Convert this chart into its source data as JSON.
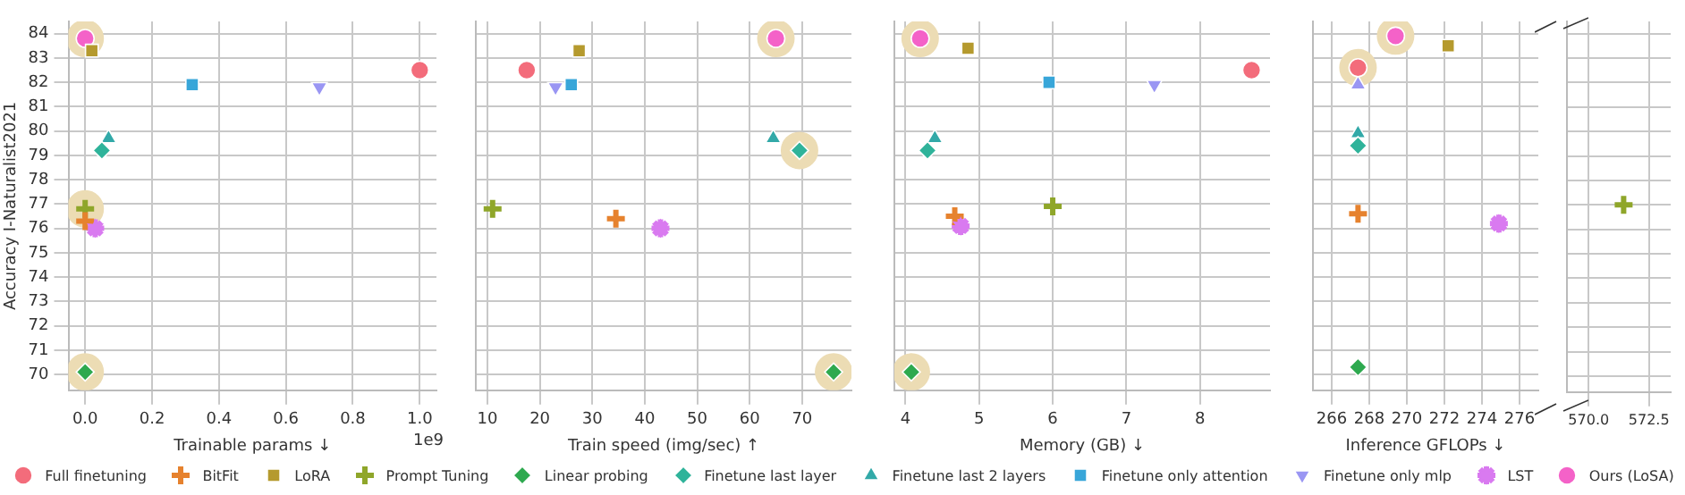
{
  "chart_data": [
    {
      "type": "scatter",
      "xlabel": "Trainable params ↓",
      "ylabel": "Accuracy I-Naturalist2021",
      "annotations": [
        "1e9"
      ],
      "legend": "bottom",
      "grid": true,
      "xlim": [
        -0.05,
        1.05
      ],
      "xticks": [
        {
          "value": 0,
          "label": "0.0"
        },
        {
          "value": 0.2,
          "label": "0.2"
        },
        {
          "value": 0.4,
          "label": "0.4"
        },
        {
          "value": 0.6,
          "label": "0.6"
        },
        {
          "value": 0.8,
          "label": "0.8"
        },
        {
          "value": 1,
          "label": "1.0"
        }
      ],
      "ylim": [
        69.35,
        84.5
      ],
      "yticks": [
        70,
        71,
        72,
        73,
        74,
        75,
        76,
        77,
        78,
        79,
        80,
        81,
        82,
        83,
        84
      ],
      "series": [
        {
          "type": "bubble",
          "color": "#ecdcb4",
          "x": [
            0,
            0,
            0
          ],
          "values": [
            83.8,
            76.8,
            70.1
          ],
          "sizes": [
            1,
            1,
            1
          ]
        },
        {
          "name": "Full finetuning",
          "color": "#f36c7b",
          "marker": "circle",
          "x": [
            1.0
          ],
          "values": [
            82.5
          ]
        },
        {
          "name": "BitFit",
          "color": "#e6822e",
          "marker": "cross",
          "x": [
            0.0
          ],
          "values": [
            76.3
          ]
        },
        {
          "name": "LoRA",
          "color": "#b59a2e",
          "marker": "square",
          "x": [
            0.02
          ],
          "values": [
            83.3
          ]
        },
        {
          "name": "Prompt Tuning",
          "color": "#8fa62a",
          "marker": "cross",
          "x": [
            0.0
          ],
          "values": [
            76.8
          ]
        },
        {
          "name": "Linear probing",
          "color": "#2ea94f",
          "marker": "diamond",
          "x": [
            0.0
          ],
          "values": [
            70.1
          ]
        },
        {
          "name": "Finetune last layer",
          "color": "#2fb39a",
          "marker": "diamond",
          "x": [
            0.05
          ],
          "values": [
            79.2
          ]
        },
        {
          "name": "Finetune last 2 layers",
          "color": "#32a9a8",
          "marker": "triangle",
          "x": [
            0.07
          ],
          "values": [
            79.7
          ]
        },
        {
          "name": "Finetune only attention",
          "color": "#38a6d9",
          "marker": "square",
          "x": [
            0.32
          ],
          "values": [
            81.9
          ]
        },
        {
          "name": "Finetune only mlp",
          "color": "#9a96f3",
          "marker": "triangle",
          "x": [
            0.7
          ],
          "values": [
            81.8
          ]
        },
        {
          "name": "LST",
          "color": "#d97af0",
          "x": [
            0.03
          ],
          "values": [
            76.0
          ]
        },
        {
          "name": "Ours (LoSA)",
          "color": "#f462c8",
          "marker": "circle",
          "x": [
            0.0
          ],
          "values": [
            83.8
          ]
        }
      ]
    },
    {
      "type": "scatter",
      "xlabel": "Train speed (img/sec) ↑",
      "grid": true,
      "tick_labels": "x",
      "xlim": [
        7.8,
        79.4
      ],
      "xticks": [
        10,
        20,
        30,
        40,
        50,
        60,
        70
      ],
      "ylim": [
        69.35,
        84.5
      ],
      "yticks": [
        70,
        71,
        72,
        73,
        74,
        75,
        76,
        77,
        78,
        79,
        80,
        81,
        82,
        83,
        84
      ],
      "series": [
        {
          "type": "bubble",
          "color": "#ecdcb4",
          "x": [
            65,
            69.5,
            76
          ],
          "values": [
            83.8,
            79.2,
            70.1
          ],
          "sizes": [
            1,
            1,
            1
          ]
        },
        {
          "color": "#f36c7b",
          "marker": "circle",
          "x": [
            17.5
          ],
          "values": [
            82.5
          ]
        },
        {
          "color": "#e6822e",
          "marker": "cross",
          "x": [
            34.5
          ],
          "values": [
            76.4
          ]
        },
        {
          "color": "#b59a2e",
          "marker": "square",
          "x": [
            27.5
          ],
          "values": [
            83.3
          ]
        },
        {
          "color": "#8fa62a",
          "marker": "cross",
          "x": [
            11
          ],
          "values": [
            76.8
          ]
        },
        {
          "color": "#2ea94f",
          "marker": "diamond",
          "x": [
            76
          ],
          "values": [
            70.1
          ]
        },
        {
          "color": "#2fb39a",
          "marker": "diamond",
          "x": [
            69.5
          ],
          "values": [
            79.2
          ]
        },
        {
          "color": "#32a9a8",
          "marker": "triangle",
          "x": [
            64.5
          ],
          "values": [
            79.7
          ]
        },
        {
          "color": "#38a6d9",
          "marker": "square",
          "x": [
            26
          ],
          "values": [
            81.9
          ]
        },
        {
          "color": "#9a96f3",
          "marker": "triangle",
          "x": [
            23
          ],
          "values": [
            81.8
          ]
        },
        {
          "color": "#d97af0",
          "x": [
            43
          ],
          "values": [
            76.0
          ]
        },
        {
          "color": "#f462c8",
          "marker": "circle",
          "x": [
            65
          ],
          "values": [
            83.8
          ]
        }
      ]
    },
    {
      "type": "scatter",
      "xlabel": "Memory (GB) ↓",
      "grid": true,
      "tick_labels": "x",
      "xlim": [
        3.85,
        8.95
      ],
      "xticks": [
        4,
        5,
        6,
        7,
        8
      ],
      "ylim": [
        69.35,
        84.5
      ],
      "yticks": [
        70,
        71,
        72,
        73,
        74,
        75,
        76,
        77,
        78,
        79,
        80,
        81,
        82,
        83,
        84
      ],
      "series": [
        {
          "type": "bubble",
          "color": "#ecdcb4",
          "x": [
            4.2,
            4.08
          ],
          "values": [
            83.8,
            70.1
          ],
          "sizes": [
            1,
            1
          ]
        },
        {
          "color": "#f36c7b",
          "marker": "circle",
          "x": [
            8.7
          ],
          "values": [
            82.5
          ]
        },
        {
          "color": "#e6822e",
          "marker": "cross",
          "x": [
            4.67
          ],
          "values": [
            76.5
          ]
        },
        {
          "color": "#b59a2e",
          "marker": "square",
          "x": [
            4.85
          ],
          "values": [
            83.4
          ]
        },
        {
          "color": "#8fa62a",
          "marker": "cross",
          "x": [
            6.0
          ],
          "values": [
            76.9
          ]
        },
        {
          "color": "#2ea94f",
          "marker": "diamond",
          "x": [
            4.08
          ],
          "values": [
            70.1
          ]
        },
        {
          "color": "#2fb39a",
          "marker": "diamond",
          "x": [
            4.3
          ],
          "values": [
            79.2
          ]
        },
        {
          "color": "#32a9a8",
          "marker": "triangle",
          "x": [
            4.4
          ],
          "values": [
            79.7
          ]
        },
        {
          "color": "#38a6d9",
          "marker": "square",
          "x": [
            5.95
          ],
          "values": [
            82.0
          ]
        },
        {
          "color": "#9a96f3",
          "marker": "triangle",
          "x": [
            7.38
          ],
          "values": [
            81.9
          ]
        },
        {
          "color": "#d97af0",
          "x": [
            4.75
          ],
          "values": [
            76.1
          ]
        },
        {
          "color": "#f462c8",
          "marker": "circle",
          "x": [
            4.2
          ],
          "values": [
            83.8
          ]
        }
      ]
    },
    {
      "type": "scatter",
      "xlabel": "Inference GFLOPs ↓",
      "grid": true,
      "tick_labels": "x",
      "xlim": [
        265,
        277
      ],
      "xticks": [
        266,
        268,
        270,
        272,
        274,
        276
      ],
      "ylim": [
        69.35,
        84.5
      ],
      "yticks": [
        70,
        71,
        72,
        73,
        74,
        75,
        76,
        77,
        78,
        79,
        80,
        81,
        82,
        83,
        84
      ],
      "series": [
        {
          "type": "bubble",
          "color": "#ecdcb4",
          "x": [
            269.4,
            267.4
          ],
          "values": [
            83.9,
            82.6
          ],
          "sizes": [
            1,
            1
          ]
        },
        {
          "color": "#f36c7b",
          "marker": "circle",
          "x": [
            267.4
          ],
          "values": [
            82.6
          ]
        },
        {
          "color": "#e6822e",
          "marker": "cross",
          "x": [
            267.4
          ],
          "values": [
            76.6
          ]
        },
        {
          "color": "#b59a2e",
          "marker": "square",
          "x": [
            272.2
          ],
          "values": [
            83.5
          ]
        },
        {
          "color": "#2ea94f",
          "marker": "diamond",
          "x": [
            267.4
          ],
          "values": [
            70.3
          ]
        },
        {
          "color": "#2fb39a",
          "marker": "diamond",
          "x": [
            267.4
          ],
          "values": [
            79.4
          ]
        },
        {
          "color": "#32a9a8",
          "marker": "triangle",
          "x": [
            267.4
          ],
          "values": [
            79.9
          ]
        },
        {
          "color": "#9a96f3",
          "marker": "triangle",
          "x": [
            267.4
          ],
          "values": [
            81.9
          ]
        },
        {
          "color": "#d97af0",
          "x": [
            274.9
          ],
          "values": [
            76.2
          ]
        },
        {
          "color": "#f462c8",
          "marker": "circle",
          "x": [
            269.4
          ],
          "values": [
            83.9
          ]
        }
      ]
    },
    {
      "type": "scatter",
      "grid": true,
      "tick_labels": "x",
      "xlim": [
        569.1,
        573.4
      ],
      "xticks": [
        {
          "value": 570,
          "label": "570.0"
        },
        {
          "value": 572.5,
          "label": "572.5"
        }
      ],
      "ylim": [
        69.35,
        84.5
      ],
      "yticks": [
        70,
        71,
        72,
        73,
        74,
        75,
        76,
        77,
        78,
        79,
        80,
        81,
        82,
        83,
        84
      ],
      "series": [
        {
          "color": "#8fa62a",
          "marker": "cross",
          "x": [
            571.45
          ],
          "values": [
            77.0
          ]
        }
      ]
    }
  ]
}
